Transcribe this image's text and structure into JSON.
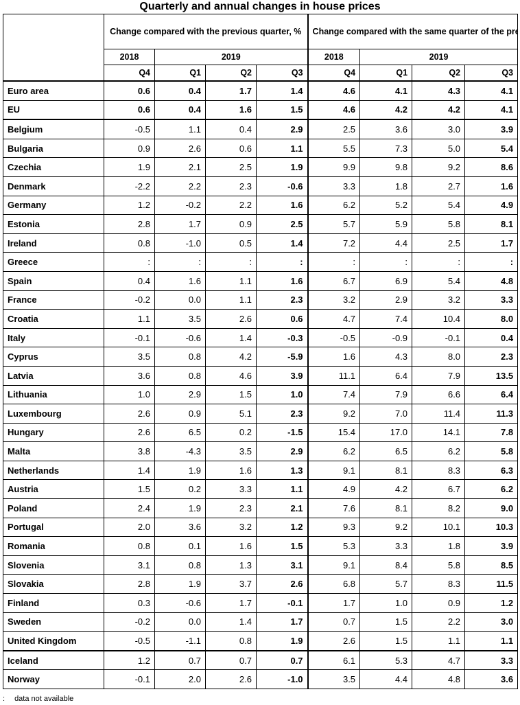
{
  "title": "Quarterly and annual changes in house prices",
  "header": {
    "group_quarter": "Change compared with the previous quarter, %",
    "group_year": "Change compared with the same quarter of the previous year, %",
    "year_2018": "2018",
    "year_2019": "2019",
    "quarters": [
      "Q4",
      "Q1",
      "Q2",
      "Q3",
      "Q4",
      "Q1",
      "Q2",
      "Q3"
    ]
  },
  "rows": [
    {
      "country": "Euro area",
      "qoq": [
        "0.6",
        "0.4",
        "1.7",
        "1.4"
      ],
      "yoy": [
        "4.6",
        "4.1",
        "4.3",
        "4.1"
      ]
    },
    {
      "country": "EU",
      "qoq": [
        "0.6",
        "0.4",
        "1.6",
        "1.5"
      ],
      "yoy": [
        "4.6",
        "4.2",
        "4.2",
        "4.1"
      ]
    },
    {
      "country": "Belgium",
      "qoq": [
        "-0.5",
        "1.1",
        "0.4",
        "2.9"
      ],
      "yoy": [
        "2.5",
        "3.6",
        "3.0",
        "3.9"
      ]
    },
    {
      "country": "Bulgaria",
      "qoq": [
        "0.9",
        "2.6",
        "0.6",
        "1.1"
      ],
      "yoy": [
        "5.5",
        "7.3",
        "5.0",
        "5.4"
      ]
    },
    {
      "country": "Czechia",
      "qoq": [
        "1.9",
        "2.1",
        "2.5",
        "1.9"
      ],
      "yoy": [
        "9.9",
        "9.8",
        "9.2",
        "8.6"
      ]
    },
    {
      "country": "Denmark",
      "qoq": [
        "-2.2",
        "2.2",
        "2.3",
        "-0.6"
      ],
      "yoy": [
        "3.3",
        "1.8",
        "2.7",
        "1.6"
      ]
    },
    {
      "country": "Germany",
      "qoq": [
        "1.2",
        "-0.2",
        "2.2",
        "1.6"
      ],
      "yoy": [
        "6.2",
        "5.2",
        "5.4",
        "4.9"
      ]
    },
    {
      "country": "Estonia",
      "qoq": [
        "2.8",
        "1.7",
        "0.9",
        "2.5"
      ],
      "yoy": [
        "5.7",
        "5.9",
        "5.8",
        "8.1"
      ]
    },
    {
      "country": "Ireland",
      "qoq": [
        "0.8",
        "-1.0",
        "0.5",
        "1.4"
      ],
      "yoy": [
        "7.2",
        "4.4",
        "2.5",
        "1.7"
      ]
    },
    {
      "country": "Greece",
      "qoq": [
        ":",
        ":",
        ":",
        ":"
      ],
      "yoy": [
        ":",
        ":",
        ":",
        ":"
      ]
    },
    {
      "country": "Spain",
      "qoq": [
        "0.4",
        "1.6",
        "1.1",
        "1.6"
      ],
      "yoy": [
        "6.7",
        "6.9",
        "5.4",
        "4.8"
      ]
    },
    {
      "country": "France",
      "qoq": [
        "-0.2",
        "0.0",
        "1.1",
        "2.3"
      ],
      "yoy": [
        "3.2",
        "2.9",
        "3.2",
        "3.3"
      ]
    },
    {
      "country": "Croatia",
      "qoq": [
        "1.1",
        "3.5",
        "2.6",
        "0.6"
      ],
      "yoy": [
        "4.7",
        "7.4",
        "10.4",
        "8.0"
      ]
    },
    {
      "country": "Italy",
      "qoq": [
        "-0.1",
        "-0.6",
        "1.4",
        "-0.3"
      ],
      "yoy": [
        "-0.5",
        "-0.9",
        "-0.1",
        "0.4"
      ]
    },
    {
      "country": "Cyprus",
      "qoq": [
        "3.5",
        "0.8",
        "4.2",
        "-5.9"
      ],
      "yoy": [
        "1.6",
        "4.3",
        "8.0",
        "2.3"
      ]
    },
    {
      "country": "Latvia",
      "qoq": [
        "3.6",
        "0.8",
        "4.6",
        "3.9"
      ],
      "yoy": [
        "11.1",
        "6.4",
        "7.9",
        "13.5"
      ]
    },
    {
      "country": "Lithuania",
      "qoq": [
        "1.0",
        "2.9",
        "1.5",
        "1.0"
      ],
      "yoy": [
        "7.4",
        "7.9",
        "6.6",
        "6.4"
      ]
    },
    {
      "country": "Luxembourg",
      "qoq": [
        "2.6",
        "0.9",
        "5.1",
        "2.3"
      ],
      "yoy": [
        "9.2",
        "7.0",
        "11.4",
        "11.3"
      ]
    },
    {
      "country": "Hungary",
      "qoq": [
        "2.6",
        "6.5",
        "0.2",
        "-1.5"
      ],
      "yoy": [
        "15.4",
        "17.0",
        "14.1",
        "7.8"
      ]
    },
    {
      "country": "Malta",
      "qoq": [
        "3.8",
        "-4.3",
        "3.5",
        "2.9"
      ],
      "yoy": [
        "6.2",
        "6.5",
        "6.2",
        "5.8"
      ]
    },
    {
      "country": "Netherlands",
      "qoq": [
        "1.4",
        "1.9",
        "1.6",
        "1.3"
      ],
      "yoy": [
        "9.1",
        "8.1",
        "8.3",
        "6.3"
      ]
    },
    {
      "country": "Austria",
      "qoq": [
        "1.5",
        "0.2",
        "3.3",
        "1.1"
      ],
      "yoy": [
        "4.9",
        "4.2",
        "6.7",
        "6.2"
      ]
    },
    {
      "country": "Poland",
      "qoq": [
        "2.4",
        "1.9",
        "2.3",
        "2.1"
      ],
      "yoy": [
        "7.6",
        "8.1",
        "8.2",
        "9.0"
      ]
    },
    {
      "country": "Portugal",
      "qoq": [
        "2.0",
        "3.6",
        "3.2",
        "1.2"
      ],
      "yoy": [
        "9.3",
        "9.2",
        "10.1",
        "10.3"
      ]
    },
    {
      "country": "Romania",
      "qoq": [
        "0.8",
        "0.1",
        "1.6",
        "1.5"
      ],
      "yoy": [
        "5.3",
        "3.3",
        "1.8",
        "3.9"
      ]
    },
    {
      "country": "Slovenia",
      "qoq": [
        "3.1",
        "0.8",
        "1.3",
        "3.1"
      ],
      "yoy": [
        "9.1",
        "8.4",
        "5.8",
        "8.5"
      ]
    },
    {
      "country": "Slovakia",
      "qoq": [
        "2.8",
        "1.9",
        "3.7",
        "2.6"
      ],
      "yoy": [
        "6.8",
        "5.7",
        "8.3",
        "11.5"
      ]
    },
    {
      "country": "Finland",
      "qoq": [
        "0.3",
        "-0.6",
        "1.7",
        "-0.1"
      ],
      "yoy": [
        "1.7",
        "1.0",
        "0.9",
        "1.2"
      ]
    },
    {
      "country": "Sweden",
      "qoq": [
        "-0.2",
        "0.0",
        "1.4",
        "1.7"
      ],
      "yoy": [
        "0.7",
        "1.5",
        "2.2",
        "3.0"
      ]
    },
    {
      "country": "United Kingdom",
      "qoq": [
        "-0.5",
        "-1.1",
        "0.8",
        "1.9"
      ],
      "yoy": [
        "2.6",
        "1.5",
        "1.1",
        "1.1"
      ]
    },
    {
      "country": "Iceland",
      "qoq": [
        "1.2",
        "0.7",
        "0.7",
        "0.7"
      ],
      "yoy": [
        "6.1",
        "5.3",
        "4.7",
        "3.3"
      ]
    },
    {
      "country": "Norway",
      "qoq": [
        "-0.1",
        "2.0",
        "2.6",
        "-1.0"
      ],
      "yoy": [
        "3.5",
        "4.4",
        "4.8",
        "3.6"
      ]
    }
  ],
  "footnote": {
    "symbol": ":",
    "text": "data not available"
  }
}
